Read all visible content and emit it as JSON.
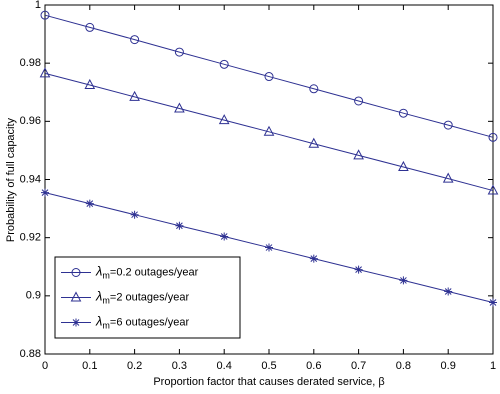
{
  "chart_data": {
    "type": "line",
    "xlabel": "Proportion factor that causes derated service, β",
    "ylabel": "Probability of full capacity",
    "x": [
      0,
      0.1,
      0.2,
      0.3,
      0.4,
      0.5,
      0.6,
      0.7,
      0.8,
      0.9,
      1
    ],
    "series": [
      {
        "name": "λm=0.2 outages/year",
        "color": "#2e3192",
        "marker": "circle",
        "values": [
          0.9965,
          0.9923,
          0.9881,
          0.9838,
          0.9796,
          0.9754,
          0.9712,
          0.967,
          0.9628,
          0.9587,
          0.9545
        ]
      },
      {
        "name": "λm=2 outages/year",
        "color": "#2e3192",
        "marker": "triangle",
        "values": [
          0.9765,
          0.9725,
          0.9684,
          0.9644,
          0.9604,
          0.9564,
          0.9523,
          0.9483,
          0.9443,
          0.9403,
          0.9362
        ]
      },
      {
        "name": "λm=6 outages/year",
        "color": "#2e3192",
        "marker": "star",
        "values": [
          0.9355,
          0.9317,
          0.9279,
          0.9241,
          0.9204,
          0.9166,
          0.9128,
          0.909,
          0.9053,
          0.9015,
          0.8977
        ]
      }
    ],
    "xlim": [
      0,
      1
    ],
    "xticks": [
      0,
      0.1,
      0.2,
      0.3,
      0.4,
      0.5,
      0.6,
      0.7,
      0.8,
      0.9,
      1
    ],
    "ylim": [
      0.88,
      1
    ],
    "yticks": [
      0.88,
      0.9,
      0.92,
      0.94,
      0.96,
      0.98,
      1
    ],
    "legend": "lower-left"
  }
}
